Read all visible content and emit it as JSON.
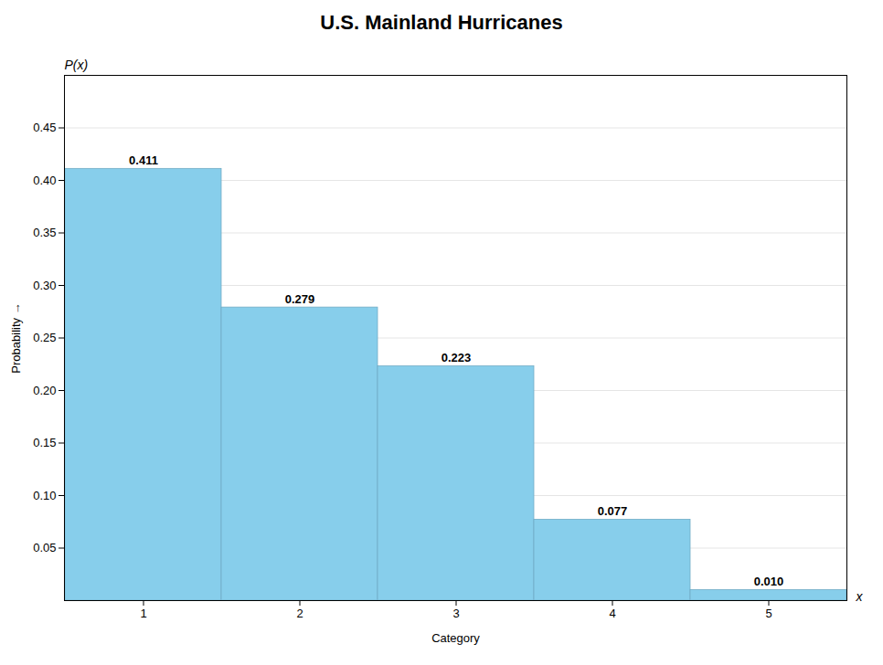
{
  "chart_data": {
    "type": "bar",
    "title": "U.S. Mainland Hurricanes",
    "categories": [
      1,
      2,
      3,
      4,
      5
    ],
    "values": [
      0.411,
      0.279,
      0.223,
      0.077,
      0.01
    ],
    "value_labels": [
      "0.411",
      "0.279",
      "0.223",
      "0.077",
      "0.010"
    ],
    "color": "#87CEEB",
    "xlabel": "Category",
    "ylabel": "Probability",
    "annotations": [
      "P(x)",
      "x"
    ],
    "ylim": [
      0,
      0.5
    ],
    "yticks": [
      0.05,
      {
        "value": 0.1,
        "label": "0.10"
      },
      0.15,
      {
        "value": 0.2,
        "label": "0.20"
      },
      0.25,
      {
        "value": 0.3,
        "label": "0.30"
      },
      0.35,
      {
        "value": 0.4,
        "label": "0.40"
      },
      0.45
    ],
    "grid": true,
    "data_labels": true
  }
}
